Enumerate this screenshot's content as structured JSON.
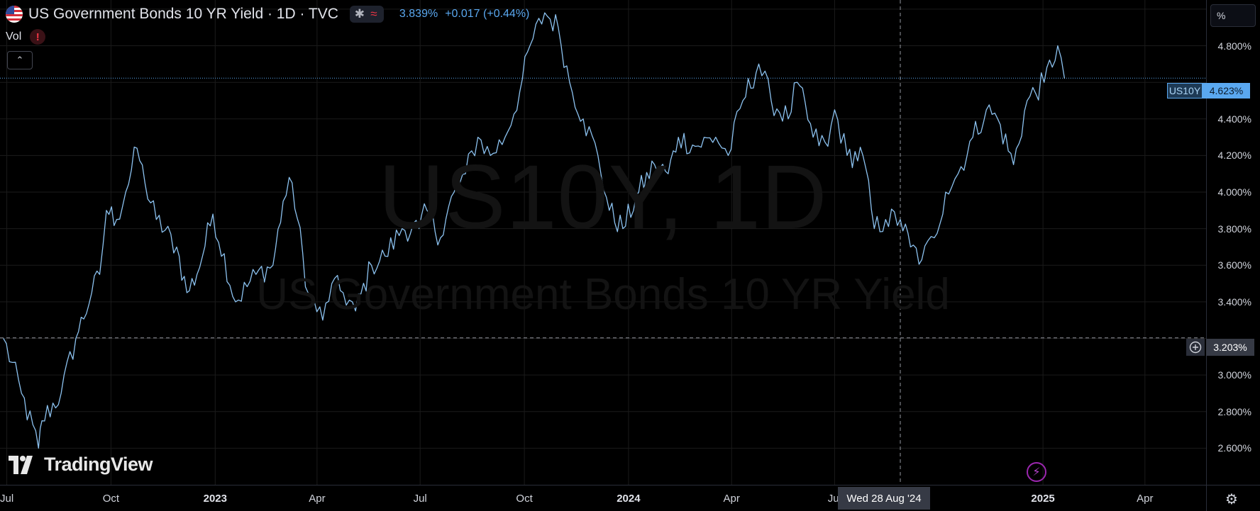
{
  "legend": {
    "title": "US Government Bonds 10 YR Yield · 1D · TVC",
    "last_price": "3.839%",
    "change": "+0.017 (+0.44%)",
    "icons": [
      "us-flag-icon",
      "asterisk-icon",
      "approx-wave-icon"
    ]
  },
  "vol": {
    "label": "Vol",
    "alert": "!"
  },
  "collapse": {
    "icon": "chevron-up-icon",
    "glyph": "⌃"
  },
  "watermark": {
    "symbol": "US10Y, 1D",
    "description": "US Government Bonds 10 YR Yield"
  },
  "brand": {
    "name": "TradingView"
  },
  "price_scale": {
    "unit": "%",
    "ticks": [
      "4.800%",
      "4.400%",
      "4.200%",
      "4.000%",
      "3.800%",
      "3.600%",
      "3.400%",
      "3.000%",
      "2.800%",
      "2.600%"
    ]
  },
  "last_price_label": {
    "symbol": "US10Y",
    "value": "4.623%"
  },
  "crosshair": {
    "price": "3.203%",
    "date": "Wed 28 Aug '24"
  },
  "time_scale": {
    "ticks": [
      {
        "label": "Jul",
        "bold": false
      },
      {
        "label": "Oct",
        "bold": false
      },
      {
        "label": "2023",
        "bold": true
      },
      {
        "label": "Apr",
        "bold": false
      },
      {
        "label": "Jul",
        "bold": false
      },
      {
        "label": "Oct",
        "bold": false
      },
      {
        "label": "2024",
        "bold": true
      },
      {
        "label": "Apr",
        "bold": false
      },
      {
        "label": "Jul",
        "bold": false
      },
      {
        "label": "2025",
        "bold": true
      },
      {
        "label": "Apr",
        "bold": false
      }
    ]
  },
  "colors": {
    "background": "#000000",
    "line": "#8cc2f0",
    "accent": "#5aa8f0",
    "grid": "#1b1b1b",
    "alert_red": "#f23645",
    "flash_purple": "#9c27b0"
  },
  "chart_data": {
    "type": "line",
    "title": "US Government Bonds 10 YR Yield",
    "series": [
      {
        "name": "US10Y",
        "x": [
          "2022-06-28",
          "2022-07-14",
          "2022-07-29",
          "2022-08-01",
          "2022-08-18",
          "2022-08-31",
          "2022-09-14",
          "2022-09-21",
          "2022-09-27",
          "2022-10-06",
          "2022-10-14",
          "2022-10-24",
          "2022-10-31",
          "2022-11-10",
          "2022-11-28",
          "2022-12-07",
          "2022-12-16",
          "2022-12-30",
          "2023-01-19",
          "2023-02-06",
          "2023-02-21",
          "2023-03-02",
          "2023-03-10",
          "2023-03-24",
          "2023-04-06",
          "2023-04-14",
          "2023-04-24",
          "2023-05-05",
          "2023-05-19",
          "2023-05-31",
          "2023-06-15",
          "2023-06-30",
          "2023-07-07",
          "2023-07-19",
          "2023-07-31",
          "2023-08-10",
          "2023-08-21",
          "2023-09-01",
          "2023-09-14",
          "2023-09-27",
          "2023-10-06",
          "2023-10-19",
          "2023-10-31",
          "2023-11-10",
          "2023-11-22",
          "2023-12-05",
          "2023-12-15",
          "2023-12-27",
          "2024-01-10",
          "2024-01-24",
          "2024-02-05",
          "2024-02-14",
          "2024-02-29",
          "2024-03-18",
          "2024-03-29",
          "2024-04-11",
          "2024-04-25",
          "2024-05-06",
          "2024-05-21",
          "2024-05-29",
          "2024-06-12",
          "2024-06-25",
          "2024-07-01",
          "2024-07-12",
          "2024-07-26",
          "2024-08-05",
          "2024-08-15",
          "2024-08-28",
          "2024-09-06",
          "2024-09-16",
          "2024-09-27",
          "2024-10-07",
          "2024-10-18",
          "2024-10-31",
          "2024-11-12",
          "2024-11-22",
          "2024-12-06",
          "2024-12-18",
          "2025-01-02",
          "2025-01-14",
          "2025-01-20"
        ],
        "values": [
          3.2,
          2.9,
          2.6,
          2.75,
          2.9,
          3.2,
          3.45,
          3.55,
          3.9,
          3.85,
          4.0,
          4.24,
          4.05,
          3.85,
          3.7,
          3.45,
          3.55,
          3.88,
          3.4,
          3.55,
          3.6,
          3.95,
          4.05,
          3.45,
          3.3,
          3.5,
          3.45,
          3.35,
          3.6,
          3.65,
          3.8,
          3.8,
          3.9,
          3.75,
          4.0,
          4.1,
          4.3,
          4.2,
          4.3,
          4.55,
          4.8,
          4.98,
          4.9,
          4.6,
          4.4,
          4.2,
          3.9,
          3.8,
          4.0,
          4.15,
          4.1,
          4.3,
          4.25,
          4.3,
          4.2,
          4.5,
          4.7,
          4.5,
          4.4,
          4.6,
          4.3,
          4.25,
          4.45,
          4.2,
          4.2,
          3.8,
          3.85,
          3.85,
          3.7,
          3.63,
          3.75,
          4.0,
          4.1,
          4.3,
          4.45,
          4.4,
          4.15,
          4.5,
          4.6,
          4.8,
          4.62
        ]
      }
    ],
    "ylim": [
      2.4,
      5.05
    ],
    "xlim": [
      "2022-06-25",
      "2025-05-25"
    ],
    "y_ticks": [
      2.6,
      2.8,
      3.0,
      3.4,
      3.6,
      3.8,
      4.0,
      4.2,
      4.4,
      4.8
    ],
    "x_ticks": [
      {
        "label": "Jul",
        "date": "2022-07-01"
      },
      {
        "label": "Oct",
        "date": "2022-10-01"
      },
      {
        "label": "2023",
        "date": "2023-01-01"
      },
      {
        "label": "Apr",
        "date": "2023-04-01"
      },
      {
        "label": "Jul",
        "date": "2023-07-01"
      },
      {
        "label": "Oct",
        "date": "2023-10-01"
      },
      {
        "label": "2024",
        "date": "2024-01-01"
      },
      {
        "label": "Apr",
        "date": "2024-04-01"
      },
      {
        "label": "Jul",
        "date": "2024-07-01"
      },
      {
        "label": "2025",
        "date": "2025-01-01"
      },
      {
        "label": "Apr",
        "date": "2025-04-01"
      }
    ],
    "grid": true,
    "crosshair": {
      "date": "2024-08-28",
      "price": 3.203
    },
    "last_value": 4.623
  }
}
